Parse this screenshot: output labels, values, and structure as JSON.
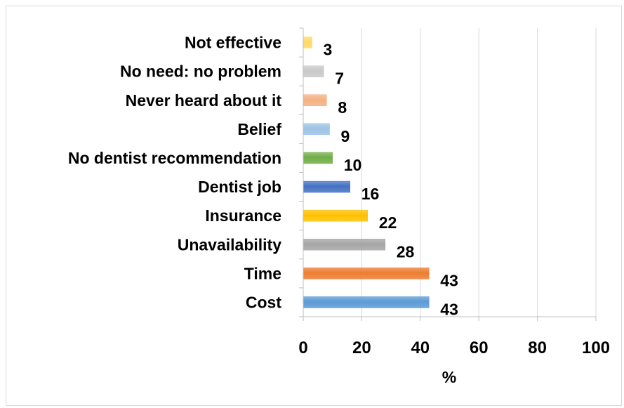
{
  "chart_data": {
    "type": "bar",
    "orientation": "horizontal",
    "categories": [
      "Cost",
      "Time ",
      "Unavailability",
      "Insurance ",
      "Dentist job",
      "No dentist recommendation",
      "Belief",
      "Never heard about it",
      "No need: no problem",
      "Not effective"
    ],
    "values": [
      43,
      43,
      28,
      22,
      16,
      10,
      9,
      8,
      7,
      3
    ],
    "colors": [
      "#5b9bd5",
      "#ed7d31",
      "#a5a5a5",
      "#ffc000",
      "#4472c4",
      "#70ad47",
      "#9dc3e6",
      "#f4b183",
      "#c9c9c9",
      "#ffd966"
    ],
    "xlabel": "%",
    "ylabel": "",
    "xlim": [
      0,
      100
    ],
    "xticks": [
      0,
      20,
      40,
      60,
      80,
      100
    ],
    "grid": true,
    "legend": "none"
  }
}
